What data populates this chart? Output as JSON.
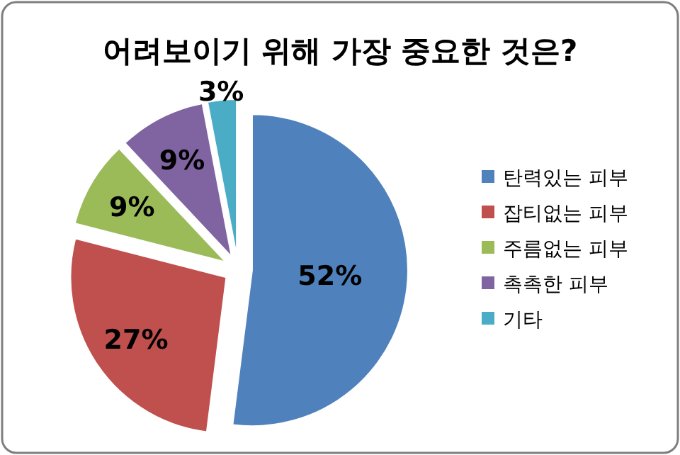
{
  "chart_data": {
    "type": "pie",
    "title": "어려보이기 위해 가장 중요한 것은?",
    "categories": [
      "탄력있는 피부",
      "잡티없는 피부",
      "주름없는 피부",
      "촉촉한 피부",
      "기타"
    ],
    "values": [
      52,
      27,
      9,
      9,
      3
    ],
    "colors": [
      "#4f81bd",
      "#c0504d",
      "#9bbb59",
      "#8064a2",
      "#4bacc6"
    ],
    "value_labels": [
      "52%",
      "27%",
      "9%",
      "9%",
      "3%"
    ],
    "legend": "right"
  }
}
